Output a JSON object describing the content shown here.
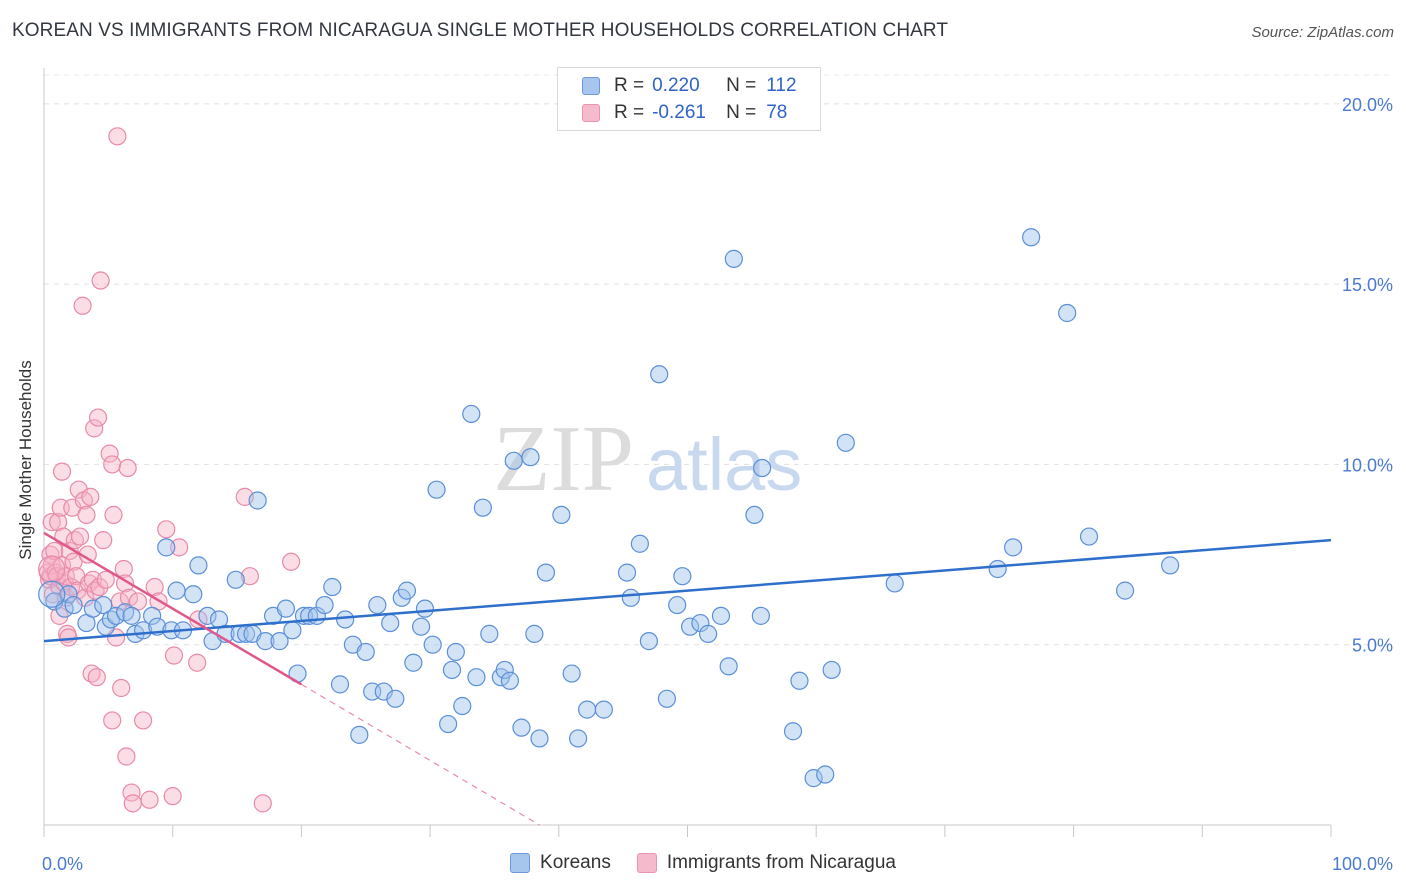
{
  "title": "KOREAN VS IMMIGRANTS FROM NICARAGUA SINGLE MOTHER HOUSEHOLDS CORRELATION CHART",
  "source": "Source: ZipAtlas.com",
  "watermark": {
    "zip": "ZIP",
    "atlas": "atlas"
  },
  "colors": {
    "korean_fill": "#9ec0ec",
    "korean_stroke": "#5b8fd8",
    "korean_line": "#2f6fcc",
    "nic_fill": "#f6b3c8",
    "nic_stroke": "#e88aa8",
    "nic_line": "#e0588a",
    "tick_text": "#4a7bd0"
  },
  "legend": {
    "rows": [
      {
        "r_label": "R =",
        "r_value": "0.220",
        "n_label": "N =",
        "n_value": "112"
      },
      {
        "r_label": "R =",
        "r_value": "-0.261",
        "n_label": "N =",
        "n_value": "78"
      }
    ]
  },
  "bottom_legend": [
    "Koreans",
    "Immigrants from Nicaragua"
  ],
  "chart_data": {
    "type": "scatter",
    "title": "KOREAN VS IMMIGRANTS FROM NICARAGUA SINGLE MOTHER HOUSEHOLDS CORRELATION CHART",
    "xlabel": "",
    "ylabel": "Single Mother Households",
    "xlim": [
      0,
      100
    ],
    "ylim": [
      0,
      20.8
    ],
    "x_tick_labels": [
      "0.0%",
      "100.0%"
    ],
    "y_ticks": [
      5,
      10,
      15,
      20
    ],
    "y_tick_labels": [
      "5.0%",
      "10.0%",
      "15.0%",
      "20.0%"
    ],
    "grid": "horizontal dashed",
    "legend_placement": "top-center",
    "series": [
      {
        "name": "Koreans",
        "trend": {
          "x": [
            0,
            100
          ],
          "y": [
            5.1,
            7.9
          ]
        },
        "points": [
          [
            0.8,
            6.2
          ],
          [
            1.6,
            6.0
          ],
          [
            1.9,
            6.4
          ],
          [
            2.3,
            6.1
          ],
          [
            3.3,
            5.6
          ],
          [
            3.8,
            6.0
          ],
          [
            4.6,
            6.1
          ],
          [
            4.8,
            5.5
          ],
          [
            5.2,
            5.7
          ],
          [
            5.6,
            5.8
          ],
          [
            6.3,
            5.9
          ],
          [
            6.8,
            5.8
          ],
          [
            7.1,
            5.3
          ],
          [
            7.7,
            5.4
          ],
          [
            8.4,
            5.8
          ],
          [
            8.8,
            5.5
          ],
          [
            9.5,
            7.7
          ],
          [
            9.9,
            5.4
          ],
          [
            10.3,
            6.5
          ],
          [
            10.8,
            5.4
          ],
          [
            11.6,
            6.4
          ],
          [
            12.0,
            7.2
          ],
          [
            12.7,
            5.8
          ],
          [
            13.1,
            5.1
          ],
          [
            13.6,
            5.7
          ],
          [
            14.1,
            5.3
          ],
          [
            14.9,
            6.8
          ],
          [
            15.2,
            5.3
          ],
          [
            15.7,
            5.3
          ],
          [
            16.2,
            5.3
          ],
          [
            16.6,
            9.0
          ],
          [
            17.2,
            5.1
          ],
          [
            17.8,
            5.8
          ],
          [
            18.3,
            5.1
          ],
          [
            18.8,
            6.0
          ],
          [
            19.3,
            5.4
          ],
          [
            19.7,
            4.2
          ],
          [
            20.2,
            5.8
          ],
          [
            20.6,
            5.8
          ],
          [
            21.2,
            5.8
          ],
          [
            21.8,
            6.1
          ],
          [
            22.4,
            6.6
          ],
          [
            23.0,
            3.9
          ],
          [
            23.4,
            5.7
          ],
          [
            24.0,
            5.0
          ],
          [
            24.5,
            2.5
          ],
          [
            25.0,
            4.8
          ],
          [
            25.5,
            3.7
          ],
          [
            25.9,
            6.1
          ],
          [
            26.4,
            3.7
          ],
          [
            26.9,
            5.6
          ],
          [
            27.3,
            3.5
          ],
          [
            27.8,
            6.3
          ],
          [
            28.2,
            6.5
          ],
          [
            28.7,
            4.5
          ],
          [
            29.3,
            5.5
          ],
          [
            29.6,
            6.0
          ],
          [
            30.2,
            5.0
          ],
          [
            30.5,
            9.3
          ],
          [
            31.4,
            2.8
          ],
          [
            31.7,
            4.3
          ],
          [
            32.0,
            4.8
          ],
          [
            32.5,
            3.3
          ],
          [
            33.2,
            11.4
          ],
          [
            33.6,
            4.1
          ],
          [
            34.1,
            8.8
          ],
          [
            34.6,
            5.3
          ],
          [
            35.5,
            4.1
          ],
          [
            35.8,
            4.3
          ],
          [
            36.2,
            4.0
          ],
          [
            36.5,
            10.1
          ],
          [
            37.1,
            2.7
          ],
          [
            37.8,
            10.2
          ],
          [
            38.1,
            5.3
          ],
          [
            38.5,
            2.4
          ],
          [
            39.0,
            7.0
          ],
          [
            40.2,
            8.6
          ],
          [
            41.0,
            4.2
          ],
          [
            41.5,
            2.4
          ],
          [
            42.2,
            3.2
          ],
          [
            43.5,
            3.2
          ],
          [
            45.3,
            7.0
          ],
          [
            45.6,
            6.3
          ],
          [
            46.3,
            7.8
          ],
          [
            47.0,
            5.1
          ],
          [
            47.8,
            12.5
          ],
          [
            48.4,
            3.5
          ],
          [
            49.2,
            6.1
          ],
          [
            49.6,
            6.9
          ],
          [
            50.2,
            5.5
          ],
          [
            51.0,
            5.6
          ],
          [
            51.6,
            5.3
          ],
          [
            52.6,
            5.8
          ],
          [
            53.2,
            4.4
          ],
          [
            53.6,
            15.7
          ],
          [
            55.2,
            8.6
          ],
          [
            55.8,
            9.9
          ],
          [
            55.7,
            5.8
          ],
          [
            58.2,
            2.6
          ],
          [
            58.7,
            4.0
          ],
          [
            59.8,
            1.3
          ],
          [
            60.7,
            1.4
          ],
          [
            61.2,
            4.3
          ],
          [
            62.3,
            10.6
          ],
          [
            66.1,
            6.7
          ],
          [
            74.1,
            7.1
          ],
          [
            75.3,
            7.7
          ],
          [
            76.7,
            16.3
          ],
          [
            79.5,
            14.2
          ],
          [
            81.2,
            8.0
          ],
          [
            84.0,
            6.5
          ],
          [
            87.5,
            7.2
          ]
        ]
      },
      {
        "name": "Immigrants from Nicaragua",
        "trend": {
          "x": [
            0,
            20
          ],
          "y": [
            8.1,
            3.9
          ]
        },
        "trend_extension": {
          "x": [
            20,
            38.5
          ],
          "y": [
            3.9,
            0
          ]
        },
        "points": [
          [
            0.3,
            7.0
          ],
          [
            0.4,
            6.8
          ],
          [
            0.5,
            7.5
          ],
          [
            0.5,
            6.9
          ],
          [
            0.6,
            7.2
          ],
          [
            0.6,
            8.4
          ],
          [
            0.7,
            6.4
          ],
          [
            0.8,
            7.6
          ],
          [
            0.9,
            7.0
          ],
          [
            1.0,
            6.9
          ],
          [
            1.1,
            8.4
          ],
          [
            1.2,
            6.6
          ],
          [
            1.3,
            8.8
          ],
          [
            1.4,
            9.8
          ],
          [
            1.4,
            7.2
          ],
          [
            1.5,
            8.0
          ],
          [
            1.6,
            6.7
          ],
          [
            1.7,
            6.3
          ],
          [
            1.7,
            6.9
          ],
          [
            1.8,
            5.3
          ],
          [
            1.9,
            5.2
          ],
          [
            2.0,
            7.6
          ],
          [
            2.1,
            6.6
          ],
          [
            2.2,
            8.8
          ],
          [
            2.3,
            7.3
          ],
          [
            2.4,
            7.9
          ],
          [
            2.5,
            6.9
          ],
          [
            2.6,
            6.5
          ],
          [
            2.7,
            9.3
          ],
          [
            2.8,
            8.0
          ],
          [
            3.0,
            14.4
          ],
          [
            3.1,
            9.0
          ],
          [
            3.2,
            6.3
          ],
          [
            3.3,
            8.6
          ],
          [
            3.4,
            7.5
          ],
          [
            3.5,
            6.7
          ],
          [
            3.6,
            9.1
          ],
          [
            3.7,
            4.2
          ],
          [
            3.8,
            6.8
          ],
          [
            3.9,
            11.0
          ],
          [
            4.0,
            6.5
          ],
          [
            4.1,
            4.1
          ],
          [
            4.2,
            11.3
          ],
          [
            4.3,
            6.6
          ],
          [
            4.4,
            15.1
          ],
          [
            4.6,
            7.9
          ],
          [
            4.8,
            6.8
          ],
          [
            5.1,
            10.3
          ],
          [
            5.3,
            10.0
          ],
          [
            5.3,
            2.9
          ],
          [
            5.4,
            8.6
          ],
          [
            5.6,
            5.2
          ],
          [
            5.7,
            19.1
          ],
          [
            5.9,
            6.2
          ],
          [
            6.0,
            3.8
          ],
          [
            6.2,
            7.1
          ],
          [
            6.3,
            6.7
          ],
          [
            6.4,
            1.9
          ],
          [
            6.5,
            9.9
          ],
          [
            6.6,
            6.3
          ],
          [
            6.8,
            0.9
          ],
          [
            6.9,
            0.6
          ],
          [
            7.3,
            6.2
          ],
          [
            7.7,
            2.9
          ],
          [
            8.2,
            0.7
          ],
          [
            8.6,
            6.6
          ],
          [
            8.9,
            6.2
          ],
          [
            9.5,
            8.2
          ],
          [
            10.0,
            0.8
          ],
          [
            10.1,
            4.7
          ],
          [
            10.5,
            7.7
          ],
          [
            11.9,
            4.5
          ],
          [
            12.0,
            5.7
          ],
          [
            15.6,
            9.1
          ],
          [
            16.0,
            6.9
          ],
          [
            17.0,
            0.6
          ],
          [
            19.2,
            7.3
          ],
          [
            1.2,
            5.8
          ]
        ]
      }
    ]
  }
}
